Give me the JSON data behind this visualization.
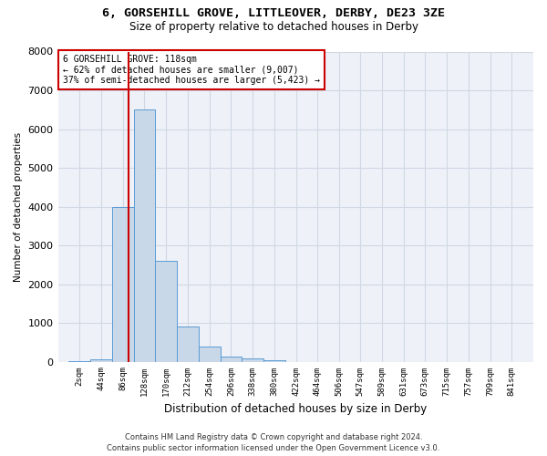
{
  "title": "6, GORSEHILL GROVE, LITTLEOVER, DERBY, DE23 3ZE",
  "subtitle": "Size of property relative to detached houses in Derby",
  "xlabel": "Distribution of detached houses by size in Derby",
  "ylabel": "Number of detached properties",
  "bar_color": "#c8d8e8",
  "bar_edge_color": "#5b9bd5",
  "categories": [
    "2sqm",
    "44sqm",
    "86sqm",
    "128sqm",
    "170sqm",
    "212sqm",
    "254sqm",
    "296sqm",
    "338sqm",
    "380sqm",
    "422sqm",
    "464sqm",
    "506sqm",
    "547sqm",
    "589sqm",
    "631sqm",
    "673sqm",
    "715sqm",
    "757sqm",
    "799sqm",
    "841sqm"
  ],
  "bin_edges": [
    2,
    44,
    86,
    128,
    170,
    212,
    254,
    296,
    338,
    380,
    422,
    464,
    506,
    547,
    589,
    631,
    673,
    715,
    757,
    799,
    841
  ],
  "values": [
    10,
    50,
    4000,
    6500,
    2600,
    900,
    380,
    120,
    80,
    40,
    0,
    0,
    0,
    0,
    0,
    0,
    0,
    0,
    0,
    0
  ],
  "property_size": 118,
  "vline_color": "#cc0000",
  "annotation_line1": "6 GORSEHILL GROVE: 118sqm",
  "annotation_line2": "← 62% of detached houses are smaller (9,007)",
  "annotation_line3": "37% of semi-detached houses are larger (5,423) →",
  "annotation_box_color": "#cc0000",
  "ylim": [
    0,
    8000
  ],
  "yticks": [
    0,
    1000,
    2000,
    3000,
    4000,
    5000,
    6000,
    7000,
    8000
  ],
  "footer_line1": "Contains HM Land Registry data © Crown copyright and database right 2024.",
  "footer_line2": "Contains public sector information licensed under the Open Government Licence v3.0.",
  "grid_color": "#d0d8e4",
  "background_color": "#eef2f8"
}
